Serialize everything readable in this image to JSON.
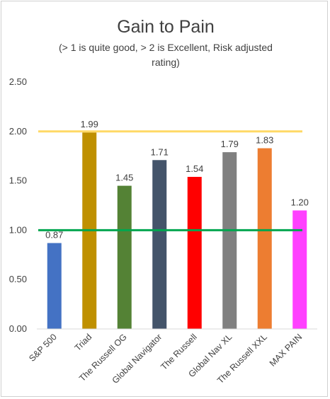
{
  "chart_data": {
    "type": "bar",
    "title": "Gain to Pain",
    "subtitle_lines": [
      "(> 1 is quite good, > 2 is Excellent, Risk adjusted",
      "rating)"
    ],
    "categories": [
      "S&P 500",
      "Triad",
      "The Russell OG",
      "Global Navigator",
      "The Russell",
      "Global Nav XL",
      "The Russell XXL",
      "MAX PAIN"
    ],
    "values": [
      0.87,
      1.99,
      1.45,
      1.71,
      1.54,
      1.79,
      1.83,
      1.2
    ],
    "value_labels": [
      "0.87",
      "1.99",
      "1.45",
      "1.71",
      "1.54",
      "1.79",
      "1.83",
      "1.20"
    ],
    "bar_colors": [
      "#4472c4",
      "#bf9000",
      "#548235",
      "#44546a",
      "#ff0000",
      "#808080",
      "#ed7d31",
      "#ff40ff"
    ],
    "yticks": [
      "0.00",
      "0.50",
      "1.00",
      "1.50",
      "2.00",
      "2.50"
    ],
    "ylim": [
      0,
      2.5
    ],
    "reference_lines": [
      {
        "value": 2.0,
        "color": "#ffd966"
      },
      {
        "value": 1.0,
        "color": "#00a64f"
      }
    ],
    "grid": false,
    "legend": "none"
  }
}
